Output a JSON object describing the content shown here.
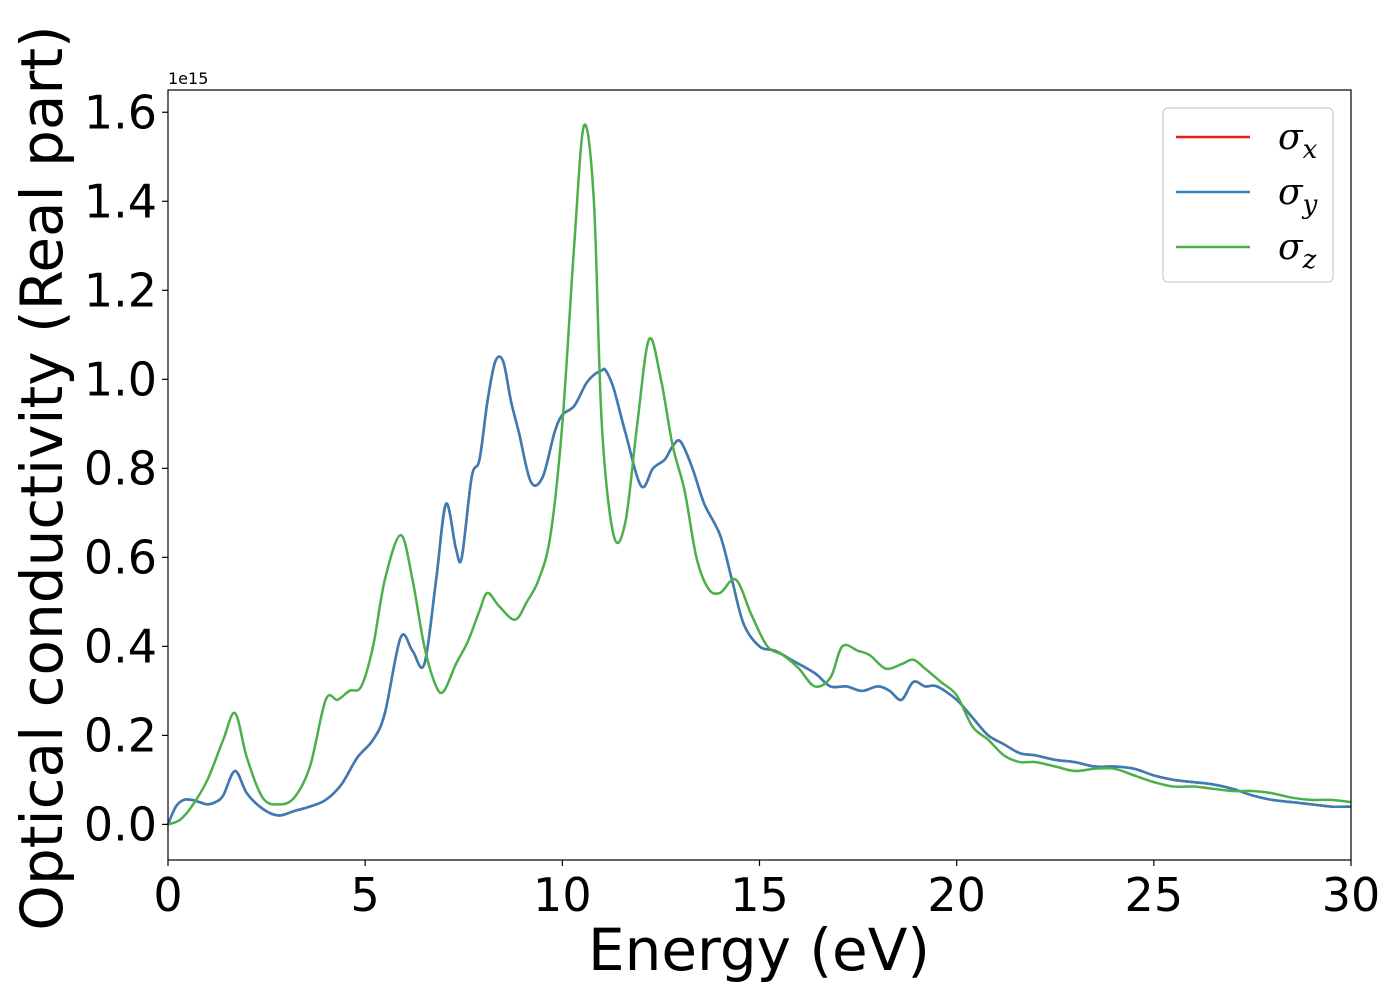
{
  "chart_data": {
    "type": "line",
    "xlabel": "Energy (eV)",
    "ylabel": "Optical conductivity (Real part)",
    "y_offset_label": "1e15",
    "xlim": [
      0,
      30
    ],
    "ylim": [
      -0.08,
      1.65
    ],
    "x_ticks": [
      0,
      5,
      10,
      15,
      20,
      25,
      30
    ],
    "x_tick_labels": [
      "0",
      "5",
      "10",
      "15",
      "20",
      "25",
      "30"
    ],
    "y_ticks": [
      0.0,
      0.2,
      0.4,
      0.6,
      0.8,
      1.0,
      1.2,
      1.4,
      1.6
    ],
    "y_tick_labels": [
      "0.0",
      "0.2",
      "0.4",
      "0.6",
      "0.8",
      "1.0",
      "1.2",
      "1.4",
      "1.6"
    ],
    "grid": false,
    "legend": {
      "placement": "top-right",
      "entries": [
        {
          "symbol": "σ",
          "subscript": "x",
          "color": "#e41a1c"
        },
        {
          "symbol": "σ",
          "subscript": "y",
          "color": "#377eb8"
        },
        {
          "symbol": "σ",
          "subscript": "z",
          "color": "#4daf4a"
        }
      ]
    },
    "series": [
      {
        "name": "σx",
        "color": "#e41a1c",
        "x": [
          0,
          0.2,
          0.4,
          0.6,
          0.8,
          1.0,
          1.2,
          1.4,
          1.7,
          2.0,
          2.4,
          2.8,
          3.2,
          3.6,
          4.0,
          4.4,
          4.8,
          5.2,
          5.5,
          5.9,
          6.2,
          6.5,
          6.8,
          7.05,
          7.3,
          7.45,
          7.7,
          7.9,
          8.1,
          8.3,
          8.5,
          8.7,
          8.9,
          9.2,
          9.5,
          9.8,
          10.0,
          10.3,
          10.6,
          10.8,
          11.0,
          11.1,
          11.3,
          11.6,
          12.0,
          12.3,
          12.6,
          12.8,
          13.0,
          13.3,
          13.6,
          14.0,
          14.3,
          14.6,
          15.0,
          15.4,
          15.8,
          16.4,
          16.8,
          17.2,
          17.6,
          18.0,
          18.3,
          18.6,
          18.9,
          19.2,
          19.5,
          20.0,
          20.4,
          20.8,
          21.2,
          21.6,
          22.0,
          22.5,
          23.0,
          23.5,
          24.0,
          24.5,
          25.0,
          25.5,
          26.0,
          26.5,
          27.0,
          27.5,
          28.0,
          28.5,
          29.0,
          29.5,
          30.0
        ],
        "y": [
          0.0,
          0.04,
          0.055,
          0.055,
          0.05,
          0.045,
          0.05,
          0.065,
          0.12,
          0.07,
          0.035,
          0.02,
          0.03,
          0.04,
          0.055,
          0.09,
          0.15,
          0.19,
          0.25,
          0.42,
          0.39,
          0.36,
          0.55,
          0.72,
          0.62,
          0.6,
          0.78,
          0.82,
          0.95,
          1.04,
          1.04,
          0.95,
          0.88,
          0.77,
          0.78,
          0.88,
          0.92,
          0.94,
          0.99,
          1.01,
          1.02,
          1.02,
          0.98,
          0.88,
          0.76,
          0.8,
          0.82,
          0.85,
          0.86,
          0.8,
          0.72,
          0.65,
          0.55,
          0.45,
          0.4,
          0.39,
          0.37,
          0.34,
          0.31,
          0.31,
          0.3,
          0.31,
          0.3,
          0.28,
          0.32,
          0.31,
          0.31,
          0.28,
          0.24,
          0.2,
          0.18,
          0.16,
          0.155,
          0.145,
          0.14,
          0.13,
          0.13,
          0.125,
          0.11,
          0.1,
          0.095,
          0.09,
          0.08,
          0.065,
          0.055,
          0.05,
          0.045,
          0.04,
          0.04
        ]
      },
      {
        "name": "σy",
        "color": "#377eb8",
        "x": [
          0,
          0.2,
          0.4,
          0.6,
          0.8,
          1.0,
          1.2,
          1.4,
          1.7,
          2.0,
          2.4,
          2.8,
          3.2,
          3.6,
          4.0,
          4.4,
          4.8,
          5.2,
          5.5,
          5.9,
          6.2,
          6.5,
          6.8,
          7.05,
          7.3,
          7.45,
          7.7,
          7.9,
          8.1,
          8.3,
          8.5,
          8.7,
          8.9,
          9.2,
          9.5,
          9.8,
          10.0,
          10.3,
          10.6,
          10.8,
          11.0,
          11.1,
          11.3,
          11.6,
          12.0,
          12.3,
          12.6,
          12.8,
          13.0,
          13.3,
          13.6,
          14.0,
          14.3,
          14.6,
          15.0,
          15.4,
          15.8,
          16.4,
          16.8,
          17.2,
          17.6,
          18.0,
          18.3,
          18.6,
          18.9,
          19.2,
          19.5,
          20.0,
          20.4,
          20.8,
          21.2,
          21.6,
          22.0,
          22.5,
          23.0,
          23.5,
          24.0,
          24.5,
          25.0,
          25.5,
          26.0,
          26.5,
          27.0,
          27.5,
          28.0,
          28.5,
          29.0,
          29.5,
          30.0
        ],
        "y": [
          0.0,
          0.04,
          0.055,
          0.055,
          0.05,
          0.045,
          0.05,
          0.065,
          0.12,
          0.07,
          0.035,
          0.02,
          0.03,
          0.04,
          0.055,
          0.09,
          0.15,
          0.19,
          0.25,
          0.42,
          0.39,
          0.36,
          0.55,
          0.72,
          0.62,
          0.6,
          0.78,
          0.82,
          0.95,
          1.04,
          1.04,
          0.95,
          0.88,
          0.77,
          0.78,
          0.88,
          0.92,
          0.94,
          0.99,
          1.01,
          1.02,
          1.02,
          0.98,
          0.88,
          0.76,
          0.8,
          0.82,
          0.85,
          0.86,
          0.8,
          0.72,
          0.65,
          0.55,
          0.45,
          0.4,
          0.39,
          0.37,
          0.34,
          0.31,
          0.31,
          0.3,
          0.31,
          0.3,
          0.28,
          0.32,
          0.31,
          0.31,
          0.28,
          0.24,
          0.2,
          0.18,
          0.16,
          0.155,
          0.145,
          0.14,
          0.13,
          0.13,
          0.125,
          0.11,
          0.1,
          0.095,
          0.09,
          0.08,
          0.065,
          0.055,
          0.05,
          0.045,
          0.04,
          0.04
        ]
      },
      {
        "name": "σz",
        "color": "#4daf4a",
        "x": [
          0,
          0.3,
          0.6,
          1.0,
          1.4,
          1.7,
          2.0,
          2.4,
          2.8,
          3.2,
          3.6,
          4.0,
          4.3,
          4.6,
          4.9,
          5.2,
          5.5,
          5.9,
          6.2,
          6.5,
          6.8,
          7.0,
          7.3,
          7.6,
          7.9,
          8.1,
          8.4,
          8.8,
          9.1,
          9.4,
          9.7,
          10.0,
          10.3,
          10.55,
          10.8,
          11.0,
          11.3,
          11.6,
          11.9,
          12.2,
          12.5,
          12.8,
          13.1,
          13.4,
          13.7,
          14.0,
          14.4,
          14.8,
          15.2,
          15.6,
          16.0,
          16.4,
          16.8,
          17.1,
          17.5,
          17.8,
          18.2,
          18.6,
          18.9,
          19.2,
          19.6,
          20.0,
          20.4,
          20.8,
          21.2,
          21.6,
          22.0,
          22.5,
          23.0,
          23.5,
          24.0,
          24.5,
          25.0,
          25.5,
          26.0,
          26.5,
          27.0,
          27.5,
          28.0,
          28.5,
          29.0,
          29.5,
          30.0
        ],
        "y": [
          0.0,
          0.01,
          0.04,
          0.1,
          0.19,
          0.25,
          0.15,
          0.06,
          0.045,
          0.06,
          0.13,
          0.28,
          0.28,
          0.3,
          0.31,
          0.4,
          0.55,
          0.65,
          0.55,
          0.4,
          0.31,
          0.3,
          0.36,
          0.41,
          0.48,
          0.52,
          0.49,
          0.46,
          0.5,
          0.55,
          0.65,
          0.9,
          1.3,
          1.57,
          1.4,
          0.9,
          0.65,
          0.68,
          0.9,
          1.09,
          1.0,
          0.85,
          0.75,
          0.6,
          0.53,
          0.52,
          0.55,
          0.47,
          0.4,
          0.38,
          0.35,
          0.31,
          0.33,
          0.4,
          0.39,
          0.38,
          0.35,
          0.36,
          0.37,
          0.35,
          0.32,
          0.29,
          0.22,
          0.19,
          0.155,
          0.14,
          0.14,
          0.13,
          0.12,
          0.125,
          0.125,
          0.11,
          0.095,
          0.085,
          0.085,
          0.08,
          0.075,
          0.075,
          0.07,
          0.06,
          0.055,
          0.055,
          0.05
        ]
      }
    ]
  }
}
